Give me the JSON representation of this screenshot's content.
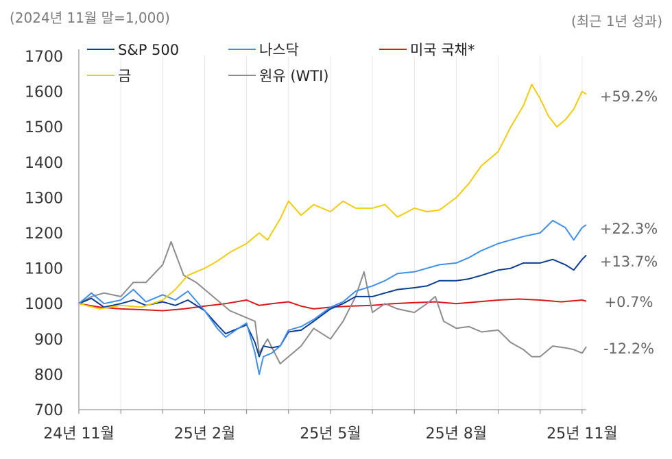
{
  "header": {
    "subtitle_left": "(2024년 11월 말=1,000)",
    "subtitle_right": "(최근 1년 성과)"
  },
  "chart_data": {
    "type": "line",
    "title": "",
    "xlabel": "",
    "ylabel": "",
    "ylim": [
      700,
      1700
    ],
    "yticks": [
      700,
      800,
      900,
      1000,
      1100,
      1200,
      1300,
      1400,
      1500,
      1600,
      1700
    ],
    "xtick_labels": [
      "24년 11월",
      "25년 2월",
      "25년 5월",
      "25년 8월",
      "25년 11월"
    ],
    "xtick_positions": [
      0,
      3,
      6,
      9,
      12
    ],
    "grid": "vertical",
    "series": [
      {
        "name": "S&P 500",
        "color": "#0b3d91",
        "end_label": "+13.7%",
        "points": [
          [
            0,
            1000
          ],
          [
            0.3,
            1015
          ],
          [
            0.6,
            990
          ],
          [
            1,
            1000
          ],
          [
            1.3,
            1010
          ],
          [
            1.6,
            995
          ],
          [
            2,
            1005
          ],
          [
            2.3,
            995
          ],
          [
            2.6,
            1010
          ],
          [
            3,
            980
          ],
          [
            3.3,
            940
          ],
          [
            3.5,
            915
          ],
          [
            3.8,
            930
          ],
          [
            4,
            940
          ],
          [
            4.2,
            890
          ],
          [
            4.3,
            850
          ],
          [
            4.4,
            880
          ],
          [
            4.6,
            875
          ],
          [
            4.8,
            880
          ],
          [
            5,
            920
          ],
          [
            5.3,
            925
          ],
          [
            5.6,
            950
          ],
          [
            6,
            985
          ],
          [
            6.3,
            1000
          ],
          [
            6.6,
            1020
          ],
          [
            7,
            1020
          ],
          [
            7.3,
            1030
          ],
          [
            7.6,
            1040
          ],
          [
            8,
            1045
          ],
          [
            8.3,
            1050
          ],
          [
            8.6,
            1065
          ],
          [
            9,
            1065
          ],
          [
            9.3,
            1070
          ],
          [
            9.6,
            1080
          ],
          [
            10,
            1095
          ],
          [
            10.3,
            1100
          ],
          [
            10.6,
            1115
          ],
          [
            11,
            1115
          ],
          [
            11.3,
            1125
          ],
          [
            11.6,
            1110
          ],
          [
            11.8,
            1095
          ],
          [
            12,
            1125
          ],
          [
            12.1,
            1137
          ]
        ]
      },
      {
        "name": "나스닥",
        "color": "#3f8fe8",
        "end_label": "+22.3%",
        "points": [
          [
            0,
            1000
          ],
          [
            0.3,
            1030
          ],
          [
            0.6,
            1000
          ],
          [
            1,
            1010
          ],
          [
            1.3,
            1040
          ],
          [
            1.6,
            1005
          ],
          [
            2,
            1025
          ],
          [
            2.3,
            1010
          ],
          [
            2.6,
            1035
          ],
          [
            3,
            980
          ],
          [
            3.3,
            930
          ],
          [
            3.5,
            905
          ],
          [
            3.8,
            930
          ],
          [
            4,
            945
          ],
          [
            4.2,
            860
          ],
          [
            4.3,
            800
          ],
          [
            4.4,
            850
          ],
          [
            4.6,
            860
          ],
          [
            4.8,
            880
          ],
          [
            5,
            925
          ],
          [
            5.3,
            935
          ],
          [
            5.6,
            955
          ],
          [
            6,
            990
          ],
          [
            6.3,
            1005
          ],
          [
            6.6,
            1035
          ],
          [
            7,
            1050
          ],
          [
            7.3,
            1065
          ],
          [
            7.6,
            1085
          ],
          [
            8,
            1090
          ],
          [
            8.3,
            1100
          ],
          [
            8.6,
            1110
          ],
          [
            9,
            1115
          ],
          [
            9.3,
            1130
          ],
          [
            9.6,
            1150
          ],
          [
            10,
            1170
          ],
          [
            10.3,
            1180
          ],
          [
            10.6,
            1190
          ],
          [
            11,
            1200
          ],
          [
            11.3,
            1235
          ],
          [
            11.6,
            1215
          ],
          [
            11.8,
            1180
          ],
          [
            12,
            1215
          ],
          [
            12.1,
            1223
          ]
        ]
      },
      {
        "name": "미국 국채*",
        "color": "#d61a1a",
        "end_label": "+0.7%",
        "points": [
          [
            0,
            1000
          ],
          [
            0.5,
            990
          ],
          [
            1,
            985
          ],
          [
            1.5,
            983
          ],
          [
            2,
            980
          ],
          [
            2.5,
            985
          ],
          [
            3,
            993
          ],
          [
            3.5,
            1000
          ],
          [
            4,
            1010
          ],
          [
            4.3,
            995
          ],
          [
            4.6,
            1000
          ],
          [
            5,
            1005
          ],
          [
            5.3,
            993
          ],
          [
            5.6,
            985
          ],
          [
            6,
            990
          ],
          [
            6.5,
            993
          ],
          [
            7,
            995
          ],
          [
            7.5,
            1000
          ],
          [
            8,
            1003
          ],
          [
            8.5,
            1005
          ],
          [
            9,
            1000
          ],
          [
            9.5,
            1005
          ],
          [
            10,
            1010
          ],
          [
            10.5,
            1013
          ],
          [
            11,
            1010
          ],
          [
            11.5,
            1005
          ],
          [
            12,
            1010
          ],
          [
            12.1,
            1007
          ]
        ]
      },
      {
        "name": "금",
        "color": "#f2cc0c",
        "end_label": "+59.2%",
        "points": [
          [
            0,
            1000
          ],
          [
            0.5,
            985
          ],
          [
            1,
            995
          ],
          [
            1.5,
            990
          ],
          [
            2,
            1010
          ],
          [
            2.3,
            1040
          ],
          [
            2.6,
            1080
          ],
          [
            3,
            1100
          ],
          [
            3.3,
            1120
          ],
          [
            3.6,
            1145
          ],
          [
            4,
            1170
          ],
          [
            4.3,
            1200
          ],
          [
            4.5,
            1180
          ],
          [
            4.8,
            1240
          ],
          [
            5,
            1290
          ],
          [
            5.3,
            1250
          ],
          [
            5.6,
            1280
          ],
          [
            6,
            1260
          ],
          [
            6.3,
            1290
          ],
          [
            6.6,
            1270
          ],
          [
            7,
            1270
          ],
          [
            7.3,
            1280
          ],
          [
            7.6,
            1245
          ],
          [
            8,
            1270
          ],
          [
            8.3,
            1260
          ],
          [
            8.6,
            1265
          ],
          [
            9,
            1300
          ],
          [
            9.3,
            1340
          ],
          [
            9.6,
            1390
          ],
          [
            10,
            1430
          ],
          [
            10.3,
            1500
          ],
          [
            10.6,
            1560
          ],
          [
            10.8,
            1620
          ],
          [
            11,
            1580
          ],
          [
            11.2,
            1530
          ],
          [
            11.4,
            1500
          ],
          [
            11.6,
            1520
          ],
          [
            11.8,
            1550
          ],
          [
            12,
            1600
          ],
          [
            12.1,
            1592
          ]
        ]
      },
      {
        "name": "원유 (WTI)",
        "color": "#8c8c8c",
        "end_label": "-12.2%",
        "points": [
          [
            0,
            1000
          ],
          [
            0.3,
            1020
          ],
          [
            0.6,
            1030
          ],
          [
            1,
            1020
          ],
          [
            1.3,
            1060
          ],
          [
            1.6,
            1060
          ],
          [
            2,
            1110
          ],
          [
            2.2,
            1175
          ],
          [
            2.5,
            1080
          ],
          [
            2.8,
            1060
          ],
          [
            3,
            1040
          ],
          [
            3.3,
            1010
          ],
          [
            3.6,
            980
          ],
          [
            4,
            960
          ],
          [
            4.2,
            950
          ],
          [
            4.3,
            860
          ],
          [
            4.5,
            900
          ],
          [
            4.8,
            830
          ],
          [
            5,
            850
          ],
          [
            5.3,
            880
          ],
          [
            5.6,
            930
          ],
          [
            6,
            900
          ],
          [
            6.3,
            950
          ],
          [
            6.6,
            1020
          ],
          [
            6.8,
            1090
          ],
          [
            7,
            975
          ],
          [
            7.3,
            1000
          ],
          [
            7.6,
            985
          ],
          [
            8,
            975
          ],
          [
            8.3,
            1000
          ],
          [
            8.5,
            1020
          ],
          [
            8.7,
            950
          ],
          [
            9,
            930
          ],
          [
            9.3,
            935
          ],
          [
            9.6,
            920
          ],
          [
            10,
            925
          ],
          [
            10.3,
            890
          ],
          [
            10.6,
            870
          ],
          [
            10.8,
            850
          ],
          [
            11,
            850
          ],
          [
            11.3,
            880
          ],
          [
            11.6,
            875
          ],
          [
            11.8,
            870
          ],
          [
            12,
            860
          ],
          [
            12.1,
            878
          ]
        ]
      }
    ]
  }
}
